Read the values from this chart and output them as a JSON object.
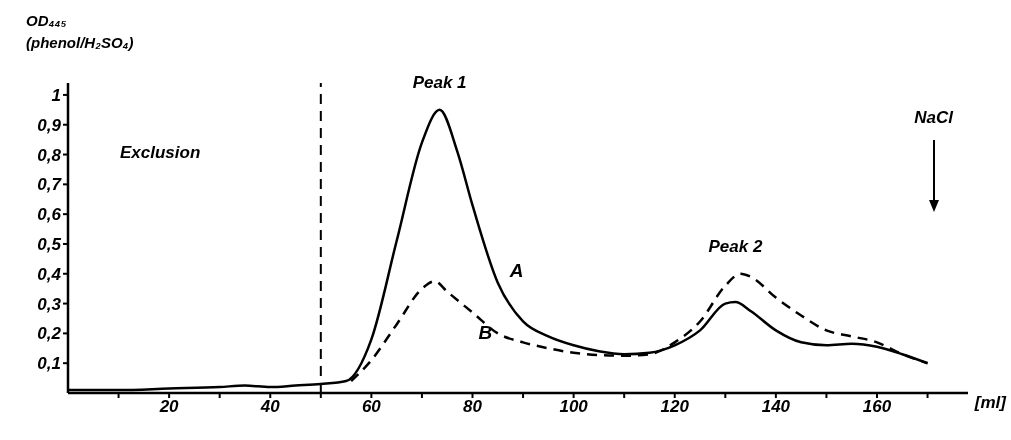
{
  "chart_data": {
    "type": "line",
    "ylabel": "OD₄₄₅ (phenol/H₂SO₄)",
    "xlabel": "[ml]",
    "xlim": [
      0,
      178
    ],
    "xticks": [
      {
        "value": 10,
        "label": null
      },
      20,
      {
        "value": 30,
        "label": null
      },
      40,
      {
        "value": 50,
        "label": null
      },
      60,
      {
        "value": 70,
        "label": null
      },
      80,
      {
        "value": 90,
        "label": null
      },
      100,
      {
        "value": 110,
        "label": null
      },
      120,
      {
        "value": 130,
        "label": null
      },
      140,
      {
        "value": 150,
        "label": null
      },
      160,
      {
        "value": 170,
        "label": null
      }
    ],
    "ylim": [
      0,
      1.04
    ],
    "yticks": [
      {
        "value": 0.1,
        "label": "0,1"
      },
      {
        "value": 0.2,
        "label": "0,2"
      },
      {
        "value": 0.3,
        "label": "0,3"
      },
      {
        "value": 0.4,
        "label": "0,4"
      },
      {
        "value": 0.5,
        "label": "0,5"
      },
      {
        "value": 0.6,
        "label": "0,6"
      },
      {
        "value": 0.7,
        "label": "0,7"
      },
      {
        "value": 0.8,
        "label": "0,8"
      },
      {
        "value": 0.9,
        "label": "0,9"
      },
      {
        "value": 1,
        "label": "1"
      }
    ],
    "grid": false,
    "marker": "none",
    "series": [
      {
        "name": "A",
        "color": "#000000",
        "line_style": "solid",
        "x": [
          0,
          10,
          20,
          30,
          35,
          40,
          45,
          50,
          55,
          60,
          65,
          70,
          73.5,
          77,
          80,
          85,
          90,
          95,
          100,
          105,
          110,
          115,
          120,
          125,
          130,
          132,
          135,
          140,
          145,
          150,
          155,
          160,
          165,
          170
        ],
        "values": [
          0.01,
          0.01,
          0.015,
          0.02,
          0.025,
          0.02,
          0.025,
          0.03,
          0.04,
          0.18,
          0.51,
          0.84,
          0.95,
          0.81,
          0.63,
          0.37,
          0.24,
          0.19,
          0.16,
          0.14,
          0.13,
          0.135,
          0.16,
          0.21,
          0.3,
          0.305,
          0.275,
          0.21,
          0.17,
          0.16,
          0.165,
          0.155,
          0.13,
          0.1
        ]
      },
      {
        "name": "B",
        "color": "#000000",
        "line_style": "dashed",
        "x": [
          56,
          60,
          65,
          70,
          72.5,
          75,
          80,
          85,
          90,
          95,
          100,
          110,
          115,
          120,
          125,
          130,
          133,
          135,
          140,
          145,
          150,
          155,
          160,
          165,
          170
        ],
        "values": [
          0.04,
          0.11,
          0.23,
          0.35,
          0.375,
          0.34,
          0.27,
          0.2,
          0.17,
          0.15,
          0.135,
          0.125,
          0.13,
          0.17,
          0.24,
          0.36,
          0.4,
          0.39,
          0.32,
          0.26,
          0.21,
          0.19,
          0.17,
          0.13,
          0.1
        ]
      }
    ],
    "ref_lines": [
      {
        "axis": "x",
        "value": 50,
        "label": null,
        "line_style": "dashed",
        "color": "#000000"
      }
    ],
    "annotations": [
      "Exclusion",
      {
        "text": "Peak 1",
        "x": 73.5,
        "y": 0.95
      },
      {
        "text": "Peak 2",
        "x": 132,
        "y": 0.4
      },
      "NaCl"
    ]
  }
}
